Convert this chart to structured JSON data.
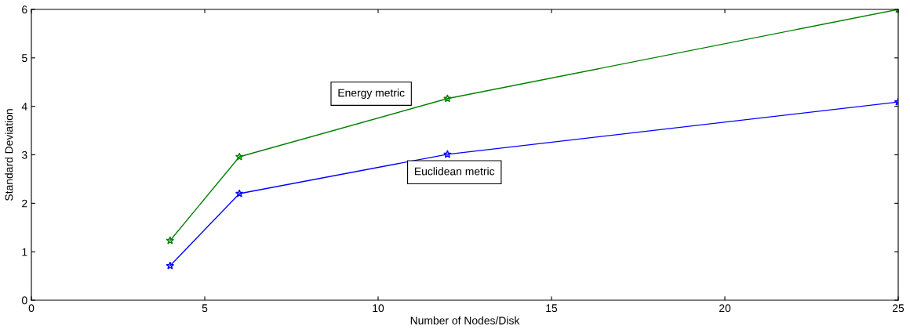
{
  "chart_data": {
    "type": "line",
    "xlabel": "Number of Nodes/Disk",
    "ylabel": "Standard Deviation",
    "series": [
      {
        "name": "Energy metric",
        "color": "#008000",
        "x": [
          4,
          6,
          12,
          25
        ],
        "values": [
          1.23,
          2.96,
          4.16,
          6.0
        ]
      },
      {
        "name": "Euclidean metric",
        "color": "#0000ff",
        "x": [
          4,
          6,
          12,
          25
        ],
        "values": [
          0.71,
          2.2,
          3.01,
          4.09
        ]
      }
    ],
    "xlim": [
      0,
      25
    ],
    "xticks": [
      0,
      5,
      10,
      15,
      20,
      25
    ],
    "ylim": [
      0,
      6
    ],
    "yticks": [
      0,
      1,
      2,
      3,
      4,
      5,
      6
    ],
    "grid": false,
    "legend": false,
    "marker": "star",
    "line_style": "solid"
  }
}
